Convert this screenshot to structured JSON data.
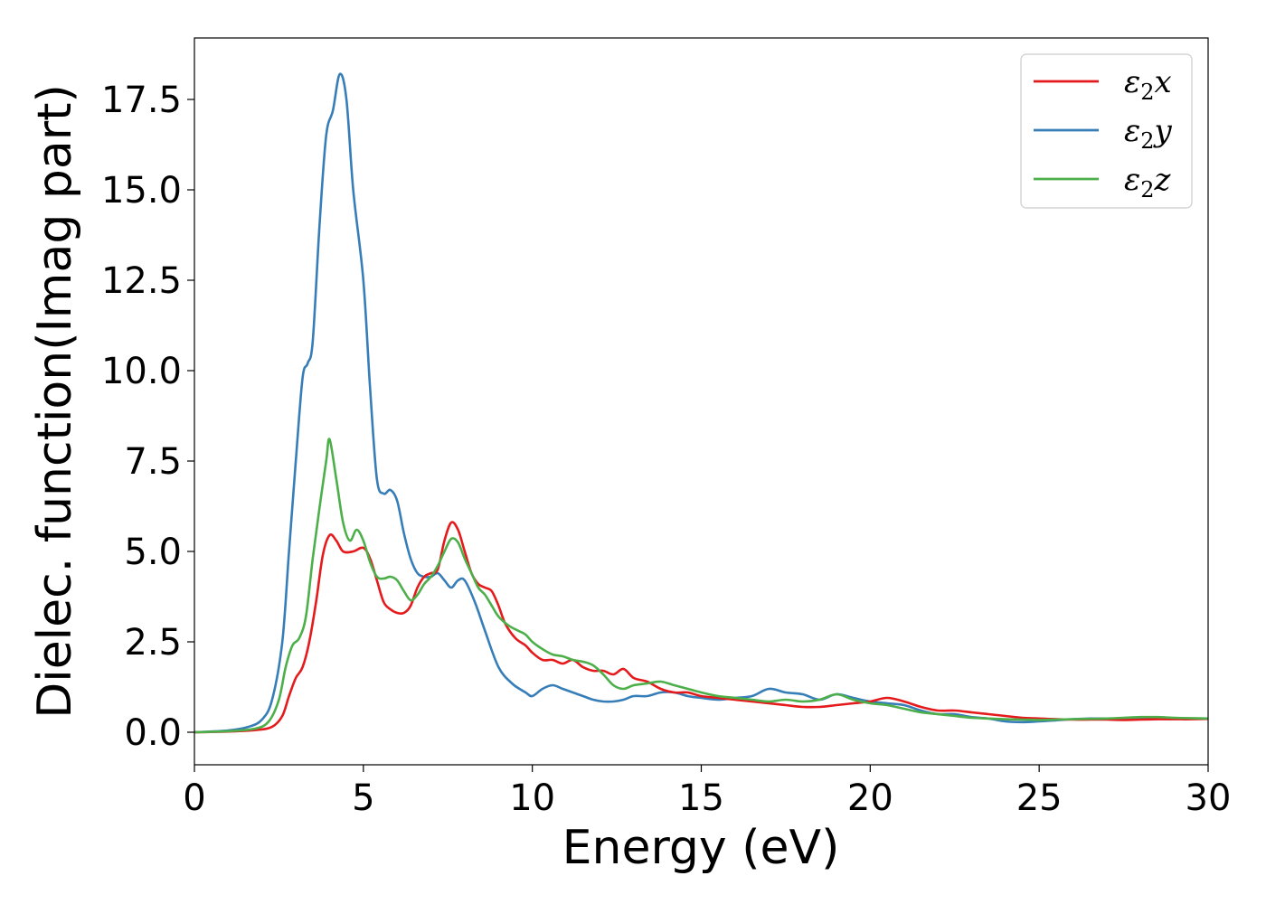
{
  "chart_data": {
    "type": "line",
    "title": "",
    "xlabel": "Energy (eV)",
    "ylabel": "Dielec. function(Imag part)",
    "xlim": [
      0,
      30
    ],
    "ylim": [
      -0.9,
      19.2
    ],
    "xticks": [
      0,
      5,
      10,
      15,
      20,
      25,
      30
    ],
    "yticks": [
      0.0,
      2.5,
      5.0,
      7.5,
      10.0,
      12.5,
      15.0,
      17.5
    ],
    "xtick_labels": [
      "0",
      "5",
      "10",
      "15",
      "20",
      "25",
      "30"
    ],
    "ytick_labels": [
      "0.0",
      "2.5",
      "5.0",
      "7.5",
      "10.0",
      "12.5",
      "15.0",
      "17.5"
    ],
    "grid": false,
    "legend_position": "top-right",
    "series": [
      {
        "name": "ε₂x",
        "legend_main": "ε",
        "legend_sub": "2",
        "legend_suffix": "x",
        "color": "#e41a1c",
        "x": [
          0,
          1.0,
          1.8,
          2.3,
          2.6,
          2.8,
          3.0,
          3.2,
          3.4,
          3.6,
          3.8,
          4.0,
          4.2,
          4.4,
          4.7,
          5.0,
          5.2,
          5.4,
          5.6,
          5.8,
          6.0,
          6.2,
          6.4,
          6.6,
          6.8,
          7.0,
          7.2,
          7.4,
          7.6,
          7.8,
          8.0,
          8.2,
          8.4,
          8.6,
          8.8,
          9.0,
          9.2,
          9.5,
          9.8,
          10.0,
          10.3,
          10.6,
          10.9,
          11.2,
          11.5,
          11.8,
          12.1,
          12.4,
          12.7,
          13.0,
          13.4,
          13.8,
          14.2,
          14.6,
          15.0,
          15.5,
          16.0,
          16.5,
          17.0,
          17.5,
          18.0,
          18.5,
          19.0,
          19.5,
          20.0,
          20.5,
          21.0,
          21.5,
          22.0,
          22.5,
          23.0,
          23.5,
          24.0,
          24.5,
          25.0,
          25.5,
          26.0,
          26.5,
          27.0,
          27.5,
          28.0,
          28.5,
          29.0,
          29.5,
          30.0
        ],
        "values": [
          0.0,
          0.02,
          0.06,
          0.15,
          0.45,
          1.0,
          1.5,
          1.8,
          2.5,
          3.6,
          4.9,
          5.45,
          5.3,
          5.0,
          5.0,
          5.1,
          4.8,
          4.2,
          3.6,
          3.4,
          3.3,
          3.3,
          3.5,
          4.0,
          4.3,
          4.4,
          4.5,
          5.3,
          5.8,
          5.6,
          5.0,
          4.4,
          4.1,
          4.0,
          3.9,
          3.5,
          3.0,
          2.6,
          2.4,
          2.2,
          2.0,
          2.0,
          1.9,
          2.0,
          1.8,
          1.7,
          1.7,
          1.6,
          1.75,
          1.5,
          1.4,
          1.2,
          1.1,
          1.1,
          1.0,
          0.95,
          0.9,
          0.85,
          0.8,
          0.75,
          0.7,
          0.7,
          0.75,
          0.8,
          0.85,
          0.95,
          0.85,
          0.7,
          0.6,
          0.6,
          0.55,
          0.5,
          0.45,
          0.4,
          0.38,
          0.36,
          0.35,
          0.35,
          0.35,
          0.34,
          0.35,
          0.36,
          0.36,
          0.36,
          0.37
        ]
      },
      {
        "name": "ε₂y",
        "legend_main": "ε",
        "legend_sub": "2",
        "legend_suffix": "y",
        "color": "#377eb8",
        "x": [
          0,
          1.0,
          1.6,
          2.0,
          2.3,
          2.6,
          2.8,
          3.0,
          3.2,
          3.35,
          3.5,
          3.7,
          3.9,
          4.1,
          4.3,
          4.5,
          4.7,
          5.0,
          5.2,
          5.4,
          5.6,
          5.8,
          6.0,
          6.2,
          6.4,
          6.6,
          6.8,
          7.0,
          7.2,
          7.4,
          7.6,
          7.8,
          8.0,
          8.3,
          8.6,
          9.0,
          9.4,
          9.8,
          10.0,
          10.3,
          10.6,
          10.9,
          11.2,
          11.5,
          11.8,
          12.1,
          12.4,
          12.7,
          13.0,
          13.4,
          13.8,
          14.2,
          14.6,
          15.0,
          15.5,
          16.0,
          16.5,
          17.0,
          17.5,
          18.0,
          18.5,
          19.0,
          19.5,
          20.0,
          20.5,
          21.0,
          21.5,
          22.0,
          22.5,
          23.0,
          23.5,
          24.0,
          24.5,
          25.0,
          25.5,
          26.0,
          26.5,
          27.0,
          27.5,
          28.0,
          28.5,
          29.0,
          29.5,
          30.0
        ],
        "values": [
          0.0,
          0.05,
          0.15,
          0.35,
          0.9,
          2.5,
          5.0,
          7.5,
          9.8,
          10.2,
          10.8,
          14.0,
          16.5,
          17.2,
          18.2,
          17.5,
          15.0,
          12.5,
          9.5,
          7.0,
          6.6,
          6.7,
          6.4,
          5.5,
          4.8,
          4.4,
          4.3,
          4.3,
          4.4,
          4.2,
          4.0,
          4.2,
          4.2,
          3.6,
          2.8,
          1.8,
          1.35,
          1.1,
          1.0,
          1.2,
          1.3,
          1.2,
          1.1,
          1.0,
          0.9,
          0.85,
          0.85,
          0.9,
          1.0,
          1.0,
          1.1,
          1.1,
          1.0,
          0.95,
          0.9,
          0.95,
          1.0,
          1.2,
          1.1,
          1.05,
          0.9,
          1.05,
          0.95,
          0.85,
          0.8,
          0.75,
          0.6,
          0.5,
          0.5,
          0.42,
          0.38,
          0.3,
          0.28,
          0.3,
          0.33,
          0.36,
          0.38,
          0.38,
          0.38,
          0.38,
          0.38,
          0.38,
          0.38,
          0.37
        ]
      },
      {
        "name": "ε₂z",
        "legend_main": "ε",
        "legend_sub": "2",
        "legend_suffix": "z",
        "color": "#4daf4a",
        "x": [
          0,
          1.0,
          1.8,
          2.2,
          2.5,
          2.7,
          2.9,
          3.1,
          3.3,
          3.5,
          3.7,
          3.9,
          4.0,
          4.2,
          4.4,
          4.6,
          4.8,
          5.0,
          5.2,
          5.4,
          5.6,
          5.8,
          6.0,
          6.2,
          6.4,
          6.6,
          6.8,
          7.0,
          7.2,
          7.4,
          7.6,
          7.8,
          8.0,
          8.2,
          8.4,
          8.6,
          8.8,
          9.0,
          9.3,
          9.6,
          9.8,
          10.0,
          10.3,
          10.6,
          10.9,
          11.2,
          11.5,
          11.8,
          12.1,
          12.4,
          12.7,
          13.0,
          13.4,
          13.8,
          14.2,
          14.6,
          15.0,
          15.5,
          16.0,
          16.5,
          17.0,
          17.5,
          18.0,
          18.5,
          19.0,
          19.5,
          20.0,
          20.5,
          21.0,
          21.5,
          22.0,
          22.5,
          23.0,
          23.5,
          24.0,
          24.5,
          25.0,
          25.5,
          26.0,
          26.5,
          27.0,
          27.5,
          28.0,
          28.5,
          29.0,
          29.5,
          30.0
        ],
        "values": [
          0.0,
          0.03,
          0.1,
          0.3,
          0.9,
          1.8,
          2.4,
          2.6,
          3.2,
          4.8,
          6.2,
          7.5,
          8.1,
          7.0,
          5.8,
          5.3,
          5.6,
          5.3,
          4.7,
          4.3,
          4.25,
          4.3,
          4.2,
          3.9,
          3.65,
          3.8,
          4.1,
          4.3,
          4.6,
          5.0,
          5.35,
          5.25,
          4.8,
          4.4,
          4.0,
          3.8,
          3.5,
          3.2,
          2.95,
          2.8,
          2.7,
          2.5,
          2.3,
          2.15,
          2.1,
          2.0,
          1.95,
          1.85,
          1.6,
          1.3,
          1.2,
          1.3,
          1.35,
          1.4,
          1.3,
          1.2,
          1.1,
          1.0,
          0.95,
          0.9,
          0.85,
          0.9,
          0.85,
          0.9,
          1.05,
          0.9,
          0.8,
          0.75,
          0.65,
          0.55,
          0.5,
          0.45,
          0.4,
          0.38,
          0.36,
          0.35,
          0.34,
          0.35,
          0.36,
          0.37,
          0.38,
          0.4,
          0.42,
          0.42,
          0.4,
          0.39,
          0.38
        ]
      }
    ]
  }
}
